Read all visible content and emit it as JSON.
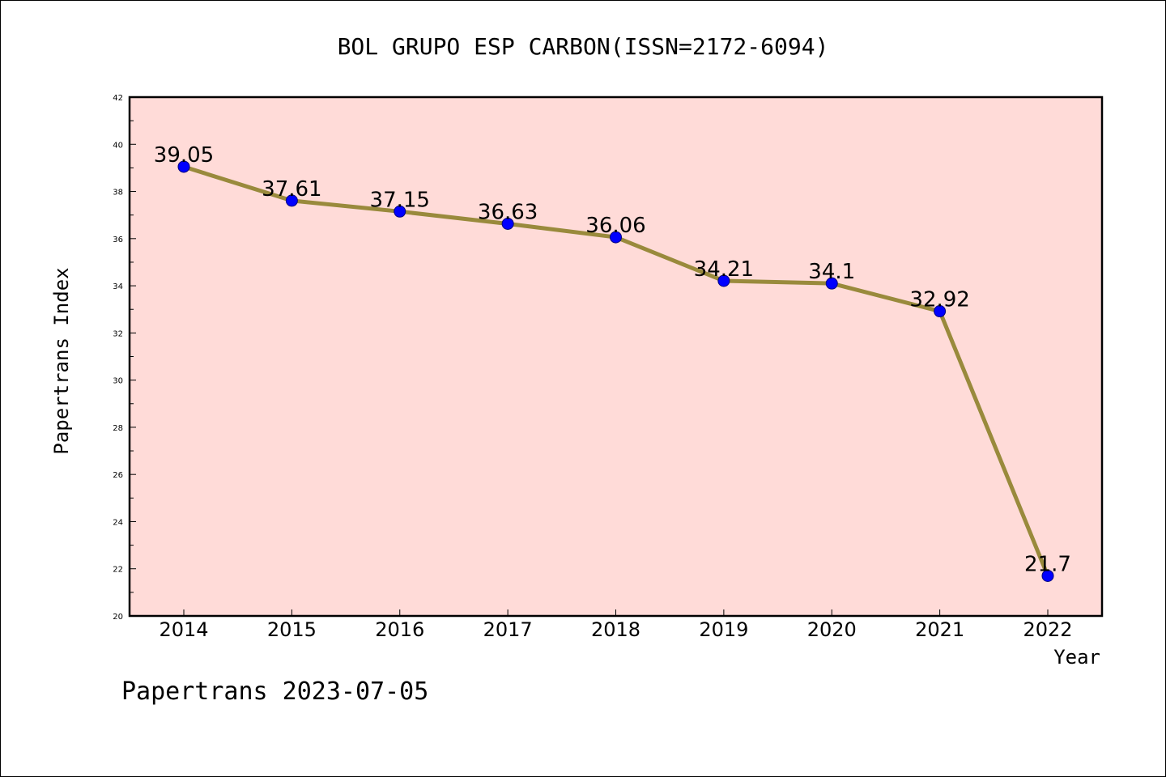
{
  "chart_data": {
    "type": "line",
    "title": "BOL GRUPO ESP CARBON(ISSN=2172-6094)",
    "xlabel": "Year",
    "ylabel": "Papertrans Index",
    "categories": [
      "2014",
      "2015",
      "2016",
      "2017",
      "2018",
      "2019",
      "2020",
      "2021",
      "2022"
    ],
    "values": [
      39.05,
      37.61,
      37.15,
      36.63,
      36.06,
      34.21,
      34.1,
      32.92,
      21.7
    ],
    "data_labels": [
      "39.05",
      "37.61",
      "37.15",
      "36.63",
      "36.06",
      "34.21",
      "34.1",
      "32.92",
      "21.7"
    ],
    "ylim": [
      20,
      42
    ],
    "yticks": [
      20,
      22,
      24,
      26,
      28,
      30,
      32,
      34,
      36,
      38,
      40,
      42
    ],
    "grid": false,
    "colors": {
      "plot_background": "#ffdbd8",
      "line": "#998a3c",
      "marker": "#0000ff"
    }
  },
  "footer": {
    "text": "Papertrans 2023-07-05"
  }
}
